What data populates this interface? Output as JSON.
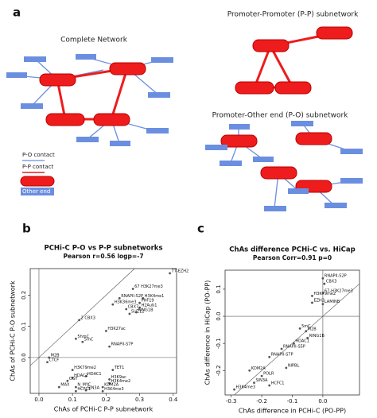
{
  "panel_labels": [
    "a",
    "b",
    "c"
  ],
  "diagram": {
    "complete": "Complete Network",
    "pp": "Promoter-Promoter (P-P) subnetwork",
    "po": "Promoter-Other end (P-O) subnetwork",
    "legend": [
      "P-O contact",
      "P-P contact",
      "Other end"
    ]
  },
  "chart_data": [
    {
      "type": "scatter",
      "title": "PCHi-C P-O vs P-P subnetworks",
      "subtitle": "Pearson r=0.56 logp=-7",
      "x_label": "ChAs of PCHi-C P-P subnetwork",
      "y_label": "ChAs of PCHi-C P-O subnetwork",
      "xlim": [
        -0.026,
        0.41
      ],
      "ylim": [
        -0.115,
        0.285
      ],
      "xticks": [
        {
          "value": 0,
          "label": "0.0"
        },
        0.1,
        0.2,
        0.3,
        0.4
      ],
      "yticks": [
        {
          "value": 0,
          "label": "0.0"
        },
        0.1,
        0.2
      ],
      "color": "#555555",
      "labels": [
        "77-EZH2",
        "67 H3K27me3",
        "RNAPII-S2P",
        "H3K4me1",
        "H3K36me3",
        "PHF19",
        "H2Aub1",
        "CBX7",
        "SUZ12",
        "RING1B",
        "2 CBX3",
        "H3K27ac",
        "RNAPII-S7P",
        "5mC",
        "5hmC",
        "M2B",
        "CTCF",
        "H3K79me2",
        "TET1",
        "HDAC1",
        "HDAC2",
        "H3K9ac",
        "H3K4me2",
        "N_MYC",
        "KDM2A",
        "SIN3A",
        "HCFC1",
        "H3K4me3",
        "MAX",
        "OGT"
      ],
      "x": [
        0.39,
        0.28,
        0.24,
        0.31,
        0.22,
        0.3,
        0.3,
        0.26,
        0.27,
        0.29,
        0.12,
        0.2,
        0.21,
        0.13,
        0.11,
        0.03,
        0.025,
        0.1,
        0.22,
        0.14,
        0.1,
        0.21,
        0.21,
        0.11,
        0.19,
        0.14,
        0.11,
        0.19,
        0.06,
        0.085
      ],
      "values": [
        0.27,
        0.22,
        0.19,
        0.19,
        0.17,
        0.175,
        0.16,
        0.155,
        0.14,
        0.145,
        0.12,
        0.085,
        0.035,
        0.05,
        0.06,
        0.0,
        -0.015,
        -0.04,
        -0.04,
        -0.06,
        -0.065,
        -0.07,
        -0.083,
        -0.095,
        -0.095,
        -0.105,
        -0.108,
        -0.108,
        -0.095,
        -0.075
      ]
    },
    {
      "type": "scatter",
      "title": "ChAs difference PCHi-C vs. HiCap",
      "subtitle": "Pearson Corr=0.91 p=0",
      "x_label": "ChAs difference in PCHi-C (PO-PP)",
      "y_label": "ChAs difference in HiCap (PO-PP)",
      "xlim": [
        -0.32,
        0.12
      ],
      "ylim": [
        -0.29,
        0.17
      ],
      "xticks": [
        -0.3,
        -0.2,
        -0.1,
        {
          "value": 0,
          "label": "0.0"
        }
      ],
      "yticks": [
        -0.2,
        -0.1,
        {
          "value": 0,
          "label": "0.0"
        },
        0.1
      ],
      "color": "#555555",
      "labels": [
        "RNAPII-S2P",
        "CBX3",
        "67-H3K27me3",
        "H3K79me2",
        "EZH2",
        "LAMINB",
        "5mC",
        "M2B",
        "RING1B",
        "HDAC1",
        "RNAPII-S5P",
        "RNAPII-S7P",
        "NIPBL",
        "KDM2A",
        "POLR",
        "SIN3A",
        "HCFC1",
        "H3K4me3"
      ],
      "x": [
        0.0,
        0.005,
        0.0,
        -0.035,
        -0.035,
        0.0,
        -0.075,
        -0.055,
        -0.05,
        -0.095,
        -0.135,
        -0.175,
        -0.12,
        -0.24,
        -0.2,
        -0.225,
        -0.175,
        -0.29
      ],
      "values": [
        0.14,
        0.12,
        0.085,
        0.075,
        0.05,
        0.045,
        -0.045,
        -0.055,
        -0.08,
        -0.1,
        -0.12,
        -0.15,
        -0.19,
        -0.2,
        -0.22,
        -0.245,
        -0.255,
        -0.27
      ]
    }
  ]
}
